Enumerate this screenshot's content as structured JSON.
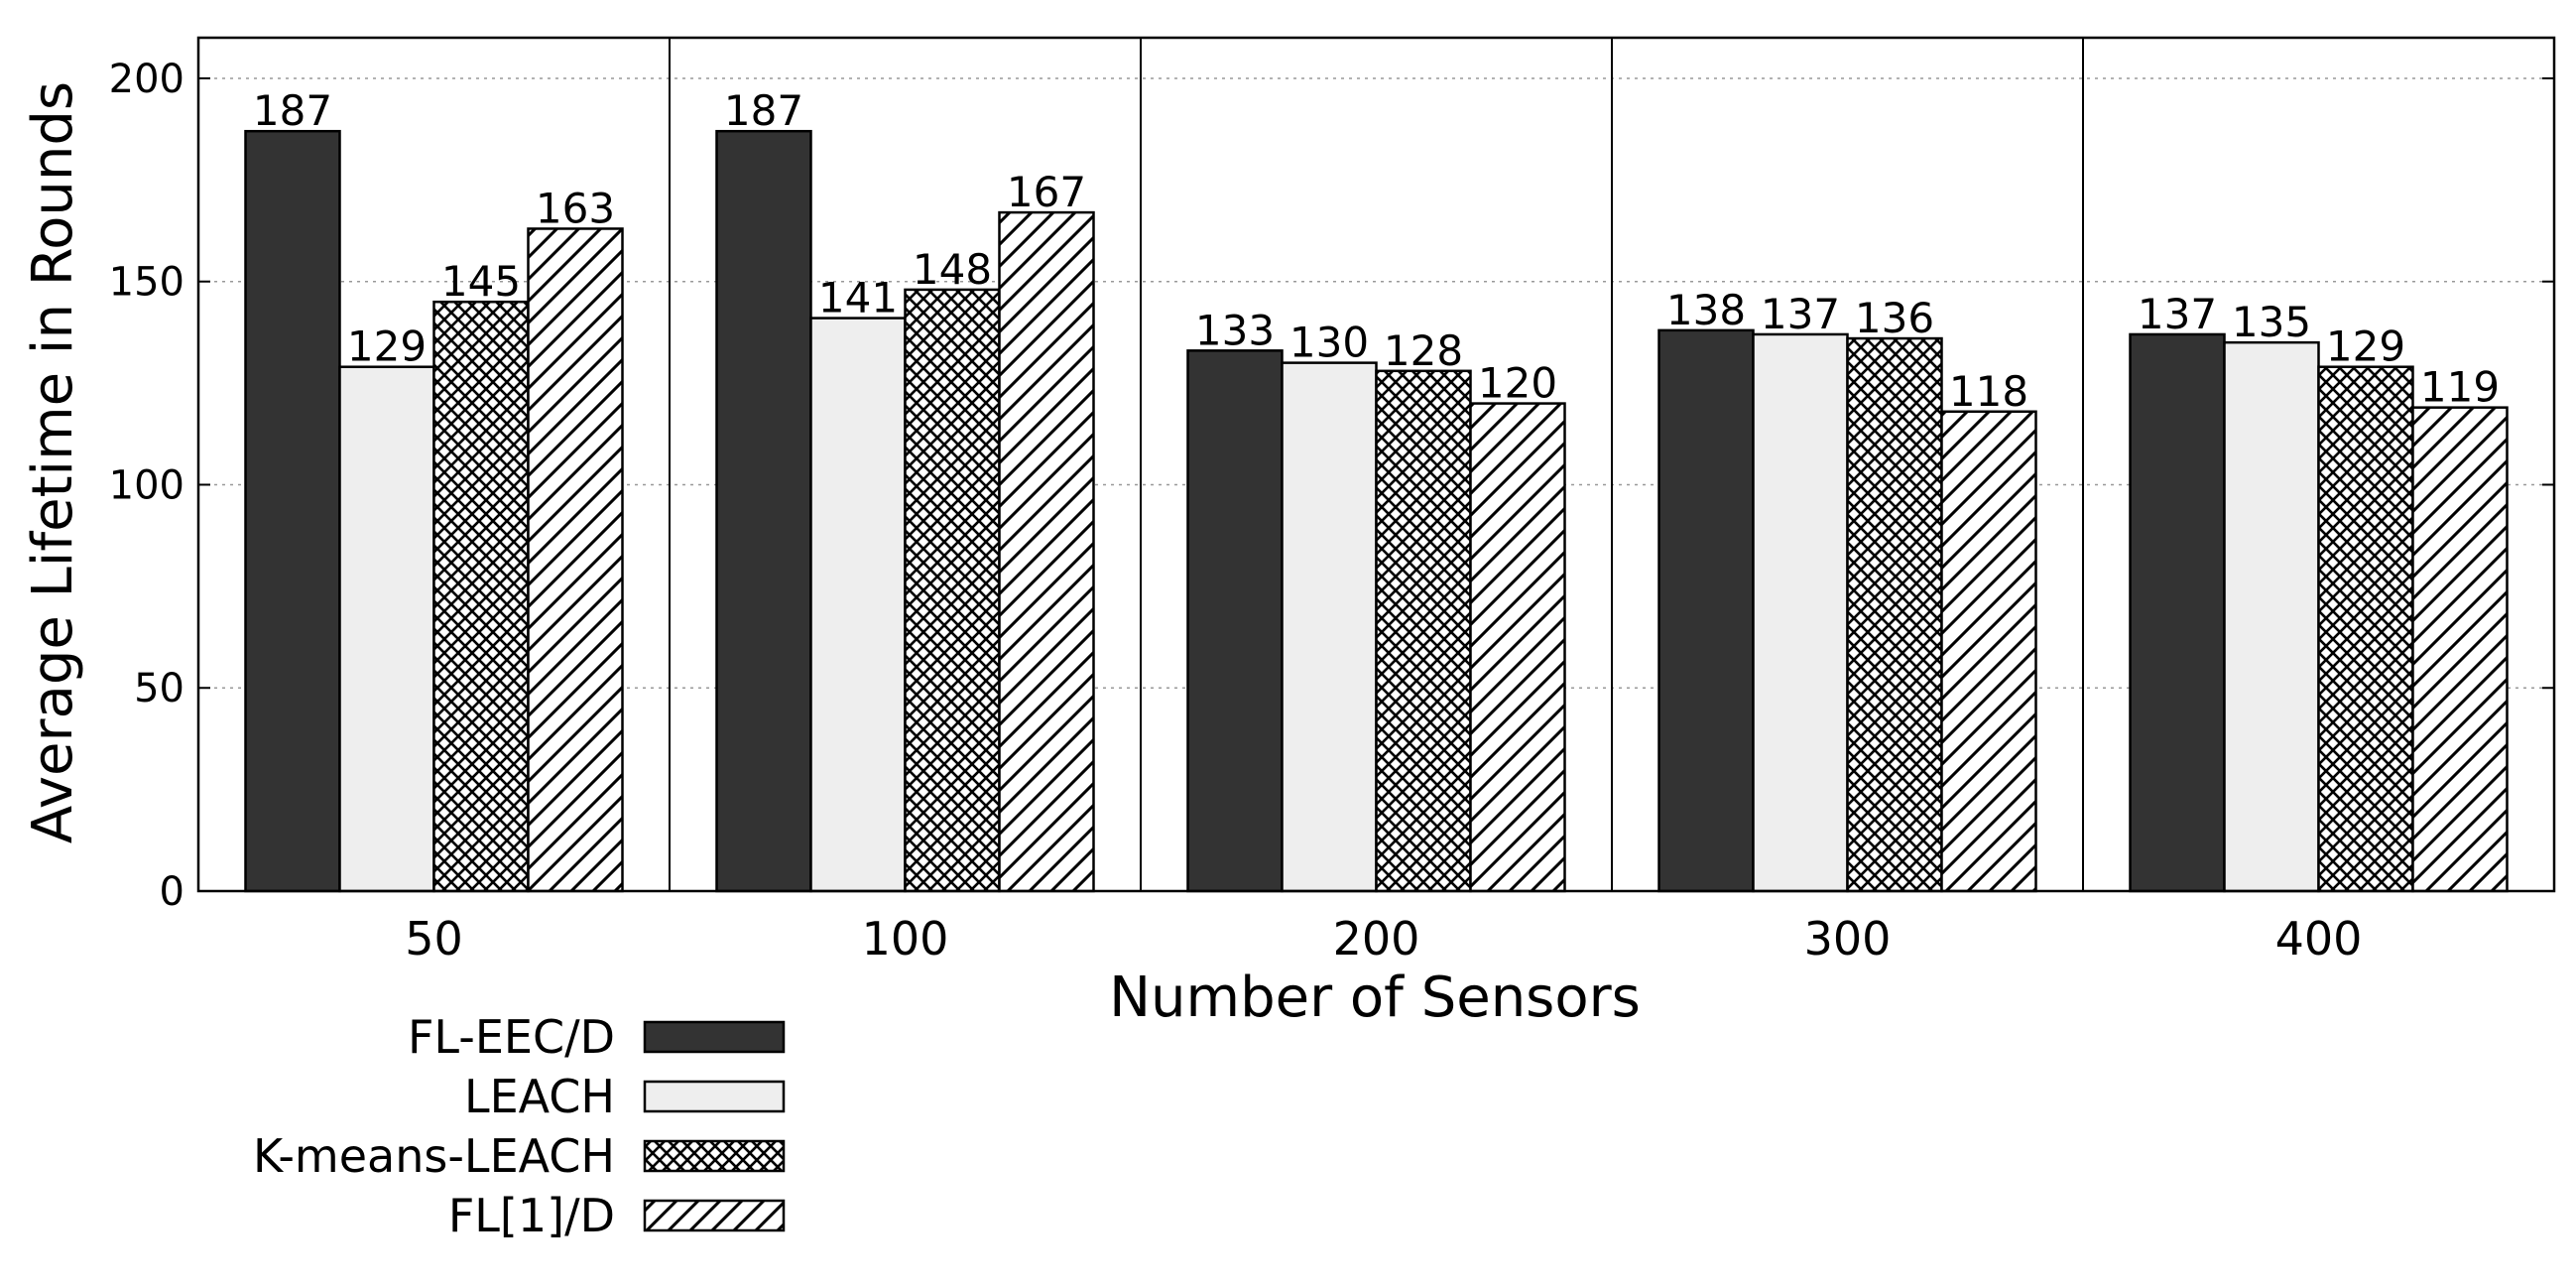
{
  "chart_data": {
    "type": "bar",
    "title": "",
    "xlabel": "Number of Sensors",
    "ylabel": "Average Lifetime in Rounds",
    "categories": [
      "50",
      "100",
      "200",
      "300",
      "400"
    ],
    "ylim": [
      0,
      210
    ],
    "yticks": [
      0,
      50,
      100,
      150,
      200
    ],
    "grid": true,
    "legend_position": "bottom-left",
    "series": [
      {
        "name": "FL-EEC/D",
        "values": [
          187,
          187,
          133,
          138,
          137
        ],
        "fill": "#333333",
        "pattern": "solid"
      },
      {
        "name": "LEACH",
        "values": [
          129,
          141,
          130,
          137,
          135
        ],
        "fill": "#eeeeee",
        "pattern": "solid"
      },
      {
        "name": "K-means-LEACH",
        "values": [
          145,
          148,
          128,
          136,
          129
        ],
        "fill": "#ffffff",
        "pattern": "crosshatch"
      },
      {
        "name": "FL[1]/D",
        "values": [
          163,
          167,
          120,
          118,
          119
        ],
        "fill": "#ffffff",
        "pattern": "diagonal"
      }
    ]
  }
}
